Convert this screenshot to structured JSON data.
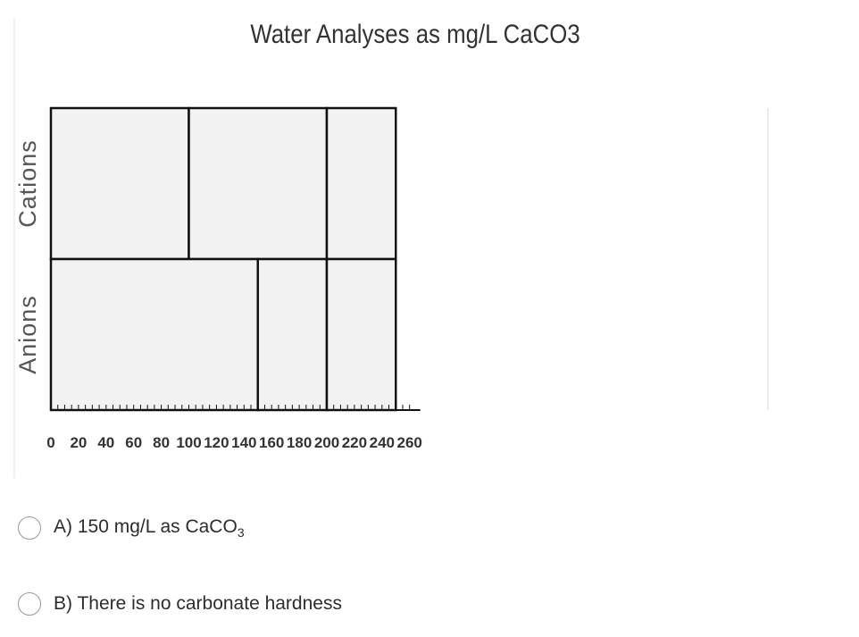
{
  "chart_data": {
    "type": "bar",
    "title": "Water Analyses as mg/L CaCO3",
    "xlabel": "",
    "ylabel": "",
    "xlim": [
      0,
      260
    ],
    "x_ticks": [
      0,
      20,
      40,
      60,
      80,
      100,
      120,
      140,
      160,
      180,
      200,
      220,
      240,
      260
    ],
    "minor_tick_step": 5,
    "grid": false,
    "rows": [
      {
        "label": "Cations",
        "boundaries": [
          0,
          100,
          200,
          250
        ]
      },
      {
        "label": "Anions",
        "boundaries": [
          0,
          150,
          200,
          250
        ]
      }
    ],
    "fill_color": "#f2f2f2",
    "line_color": "#111111"
  },
  "options": [
    {
      "prefix": "A) 150 mg/L as CaCO",
      "sub": "3"
    },
    {
      "prefix": "B) There is no carbonate hardness",
      "sub": ""
    }
  ]
}
